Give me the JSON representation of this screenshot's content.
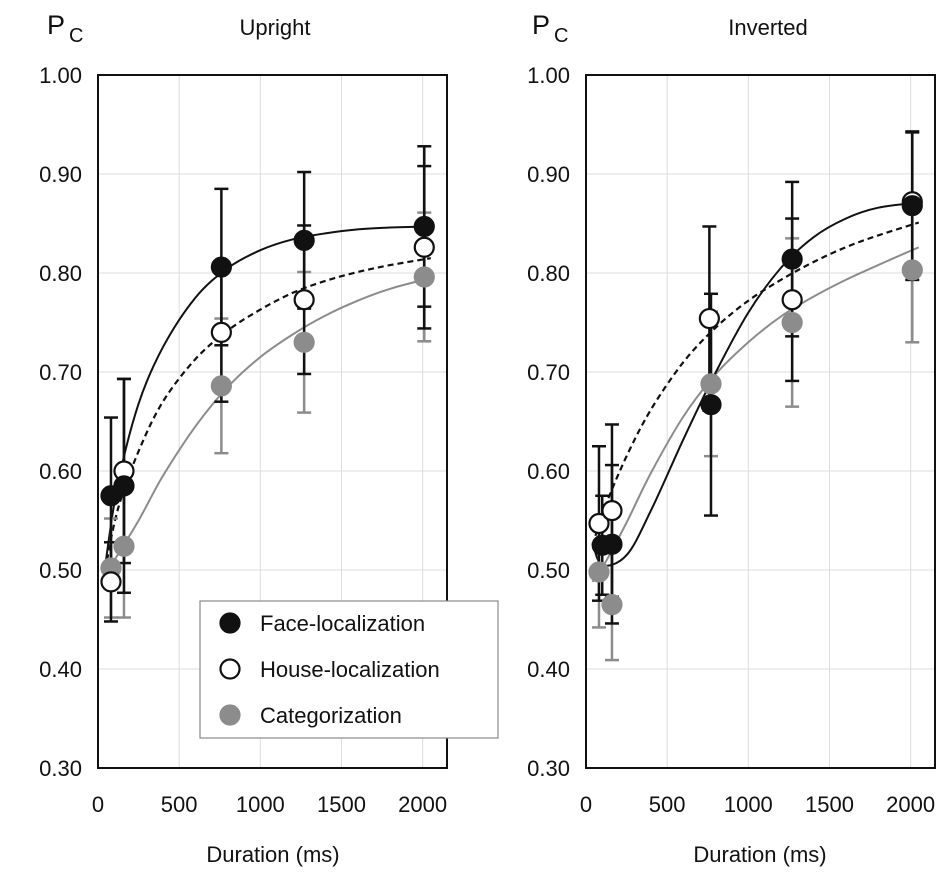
{
  "chart_data": [
    {
      "type": "line",
      "title": "Upright",
      "ylabel": "P",
      "ylabel_sub": "C",
      "xlabel": "Duration (ms)",
      "xlim": [
        0,
        2150
      ],
      "ylim": [
        0.3,
        1.0
      ],
      "x_ticks": [
        0,
        500,
        1000,
        1500,
        2000
      ],
      "x_tick_labels": [
        "0",
        "500",
        "1000",
        "1500",
        "2000"
      ],
      "y_ticks": [
        0.3,
        0.4,
        0.5,
        0.6,
        0.7,
        0.8,
        0.9,
        1.0
      ],
      "y_tick_labels": [
        "0.30",
        "0.40",
        "0.50",
        "0.60",
        "0.70",
        "0.80",
        "0.90",
        "1.00"
      ],
      "grid": true,
      "legend": {
        "position": "bottom-right",
        "entries": [
          "Face-localization",
          "House-localization",
          "Categorization"
        ]
      },
      "series": [
        {
          "name": "Face-localization",
          "marker": "filled-black",
          "color": "#111111",
          "line_style": "solid",
          "x": [
            80,
            160,
            760,
            1270,
            2010
          ],
          "y": [
            0.575,
            0.585,
            0.806,
            0.833,
            0.847
          ],
          "err": [
            0.079,
            0.108,
            0.079,
            0.069,
            0.081
          ],
          "fit": {
            "x": [
              45,
              120,
              250,
              400,
              600,
              800,
              1000,
              1200,
              1400,
              1600,
              1800,
              2050
            ],
            "y": [
              0.505,
              0.585,
              0.668,
              0.725,
              0.775,
              0.805,
              0.823,
              0.834,
              0.84,
              0.844,
              0.846,
              0.847
            ]
          }
        },
        {
          "name": "House-localization",
          "marker": "open-circle",
          "color": "#111111",
          "line_style": "dashed",
          "x": [
            80,
            160,
            760,
            1270,
            2010
          ],
          "y": [
            0.488,
            0.6,
            0.74,
            0.773,
            0.826
          ],
          "err": [
            0.04,
            0.093,
            0.07,
            0.075,
            0.082
          ],
          "fit": {
            "x": [
              45,
              120,
              250,
              400,
              600,
              800,
              1000,
              1200,
              1400,
              1600,
              1800,
              2050
            ],
            "y": [
              0.5,
              0.56,
              0.62,
              0.67,
              0.713,
              0.742,
              0.763,
              0.78,
              0.792,
              0.801,
              0.808,
              0.815
            ]
          }
        },
        {
          "name": "Categorization",
          "marker": "filled-gray",
          "color": "#8c8c8c",
          "line_style": "solid",
          "x": [
            80,
            160,
            760,
            1270,
            2010
          ],
          "y": [
            0.502,
            0.524,
            0.686,
            0.73,
            0.796
          ],
          "err": [
            0.05,
            0.072,
            0.068,
            0.071,
            0.065
          ],
          "fit": {
            "x": [
              45,
              120,
              250,
              400,
              600,
              800,
              1000,
              1200,
              1400,
              1600,
              1800,
              2050
            ],
            "y": [
              0.495,
              0.515,
              0.55,
              0.595,
              0.645,
              0.685,
              0.715,
              0.738,
              0.757,
              0.772,
              0.784,
              0.795
            ]
          }
        }
      ]
    },
    {
      "type": "line",
      "title": "Inverted",
      "ylabel": "P",
      "ylabel_sub": "C",
      "xlabel": "Duration (ms)",
      "xlim": [
        0,
        2150
      ],
      "ylim": [
        0.3,
        1.0
      ],
      "x_ticks": [
        0,
        500,
        1000,
        1500,
        2000
      ],
      "x_tick_labels": [
        "0",
        "500",
        "1000",
        "1500",
        "2000"
      ],
      "y_ticks": [
        0.3,
        0.4,
        0.5,
        0.6,
        0.7,
        0.8,
        0.9,
        1.0
      ],
      "y_tick_labels": [
        "0.30",
        "0.40",
        "0.50",
        "0.60",
        "0.70",
        "0.80",
        "0.90",
        "1.00"
      ],
      "grid": true,
      "legend": null,
      "series": [
        {
          "name": "Face-localization",
          "marker": "filled-black",
          "color": "#111111",
          "line_style": "solid",
          "x": [
            100,
            160,
            770,
            1270,
            2010
          ],
          "y": [
            0.525,
            0.526,
            0.667,
            0.814,
            0.868
          ],
          "err": [
            0.05,
            0.08,
            0.112,
            0.078,
            0.075
          ],
          "fit": {
            "x": [
              40,
              100,
              250,
              400,
              600,
              800,
              1000,
              1200,
              1400,
              1600,
              1800,
              2050
            ],
            "y": [
              0.528,
              0.505,
              0.515,
              0.56,
              0.632,
              0.7,
              0.76,
              0.805,
              0.836,
              0.855,
              0.866,
              0.871
            ]
          }
        },
        {
          "name": "House-localization",
          "marker": "open-circle",
          "color": "#111111",
          "line_style": "dashed",
          "x": [
            80,
            160,
            760,
            1270,
            2010
          ],
          "y": [
            0.547,
            0.56,
            0.754,
            0.773,
            0.872
          ],
          "err": [
            0.078,
            0.087,
            0.093,
            0.082,
            0.07
          ],
          "fit": {
            "x": [
              40,
              120,
              250,
              400,
              600,
              800,
              1000,
              1200,
              1400,
              1600,
              1800,
              2050
            ],
            "y": [
              0.525,
              0.565,
              0.615,
              0.662,
              0.71,
              0.745,
              0.772,
              0.793,
              0.811,
              0.826,
              0.838,
              0.851
            ]
          }
        },
        {
          "name": "Categorization",
          "marker": "filled-gray",
          "color": "#8c8c8c",
          "line_style": "solid",
          "x": [
            80,
            160,
            770,
            1270,
            2010
          ],
          "y": [
            0.498,
            0.465,
            0.688,
            0.75,
            0.803
          ],
          "err": [
            0.056,
            0.056,
            0.073,
            0.085,
            0.073
          ],
          "fit": {
            "x": [
              40,
              120,
              250,
              400,
              600,
              800,
              1000,
              1200,
              1400,
              1600,
              1800,
              2050
            ],
            "y": [
              0.488,
              0.508,
              0.548,
              0.598,
              0.655,
              0.698,
              0.73,
              0.756,
              0.776,
              0.793,
              0.808,
              0.826
            ]
          }
        }
      ]
    }
  ]
}
